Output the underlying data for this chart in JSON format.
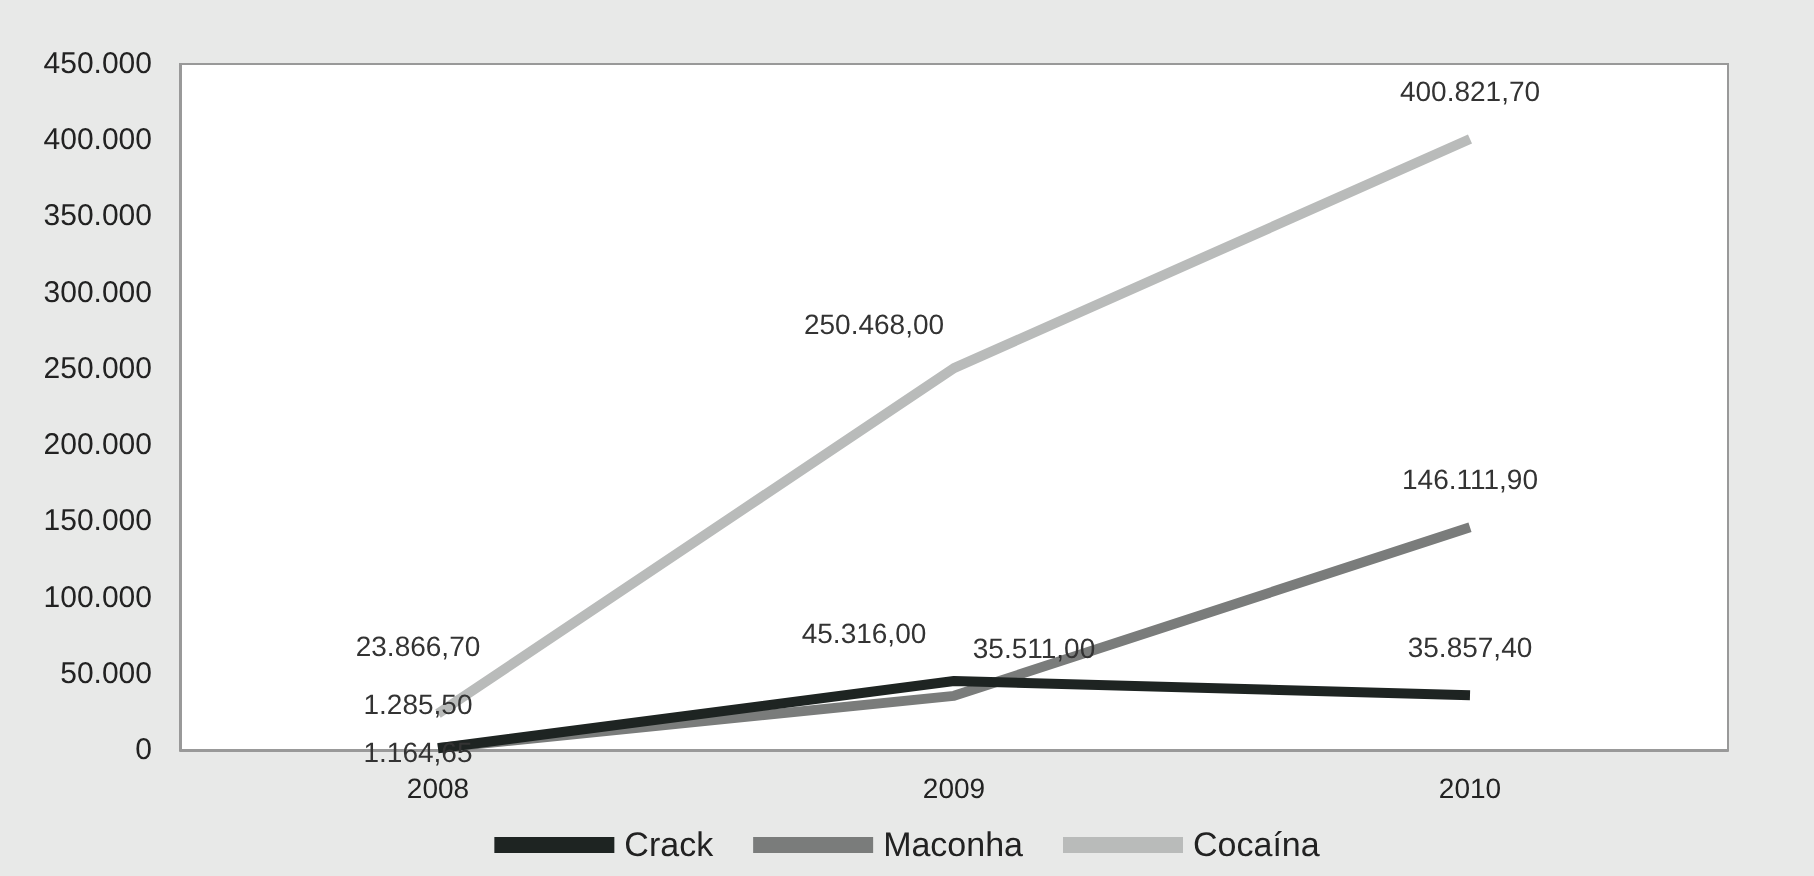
{
  "chart_data": {
    "type": "line",
    "categories": [
      "2008",
      "2009",
      "2010"
    ],
    "series": [
      {
        "name": "Crack",
        "color": "#1e2422",
        "values": [
          1164.65,
          45316,
          35857.4
        ],
        "value_labels": [
          "1.164,65",
          "45.316,00",
          "35.857,40"
        ]
      },
      {
        "name": "Maconha",
        "color": "#7a7c7b",
        "values": [
          1285.5,
          35511,
          146111.9
        ],
        "value_labels": [
          "1.285,50",
          "35.511,00",
          "146.111,90"
        ]
      },
      {
        "name": "Cocaína",
        "color": "#b9bbba",
        "values": [
          23866.7,
          250468,
          400821.7
        ],
        "value_labels": [
          "23.866,70",
          "250.468,00",
          "400.821,70"
        ]
      }
    ],
    "ylim": [
      0,
      450000
    ],
    "yticks": [
      {
        "value": 0,
        "label": "0"
      },
      {
        "value": 50000,
        "label": "50.000"
      },
      {
        "value": 100000,
        "label": "100.000"
      },
      {
        "value": 150000,
        "label": "150.000"
      },
      {
        "value": 200000,
        "label": "200.000"
      },
      {
        "value": 250000,
        "label": "250.000"
      },
      {
        "value": 300000,
        "label": "300.000"
      },
      {
        "value": 350000,
        "label": "350.000"
      },
      {
        "value": 400000,
        "label": "400.000"
      },
      {
        "value": 450000,
        "label": "450.000"
      }
    ],
    "grid": false,
    "legend": "bottom",
    "marker": "none",
    "line_style": "solid"
  }
}
